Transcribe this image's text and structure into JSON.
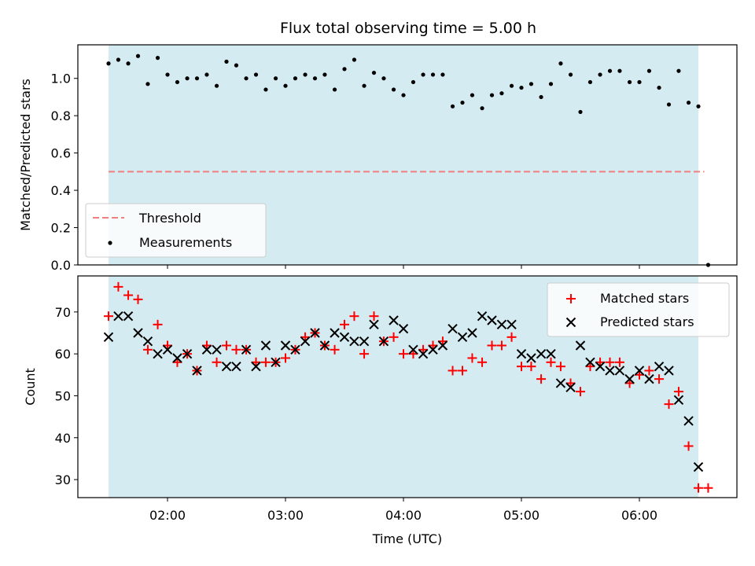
{
  "chart_data": {
    "title": "Flux total observing time = 5.00 h",
    "xlabel": "Time (UTC)",
    "x_unit": "hours UTC",
    "x_ticks": [
      {
        "value": 2,
        "label": "02:00"
      },
      {
        "value": 3,
        "label": "03:00"
      },
      {
        "value": 4,
        "label": "04:00"
      },
      {
        "value": 5,
        "label": "05:00"
      },
      {
        "value": 6,
        "label": "06:00"
      }
    ],
    "observing_window": [
      1.5,
      6.5
    ],
    "colors": {
      "window_fill": "#d4ebf1",
      "threshold": "#f08080",
      "measurements": "#000000",
      "matched": "#ff0000",
      "predicted": "#000000"
    },
    "panels": [
      {
        "type": "scatter",
        "ylabel": "Matched/Predicted stars",
        "ylim": [
          0,
          1.18
        ],
        "y_tick_labels": [
          "0.0",
          "0.2",
          "0.4",
          "0.6",
          "0.8",
          "1.0"
        ],
        "legend_position": "lower-left",
        "threshold": {
          "name": "Threshold",
          "y": 0.5,
          "x_range": [
            1.5,
            6.55
          ]
        },
        "measurements": {
          "name": "Measurements",
          "x": [
            1.5,
            1.583,
            1.667,
            1.75,
            1.833,
            1.917,
            2.0,
            2.083,
            2.167,
            2.25,
            2.333,
            2.417,
            2.5,
            2.583,
            2.667,
            2.75,
            2.833,
            2.917,
            3.0,
            3.083,
            3.167,
            3.25,
            3.333,
            3.417,
            3.5,
            3.583,
            3.667,
            3.75,
            3.833,
            3.917,
            4.0,
            4.083,
            4.167,
            4.25,
            4.333,
            4.417,
            4.5,
            4.583,
            4.667,
            4.75,
            4.833,
            4.917,
            5.0,
            5.083,
            5.167,
            5.25,
            5.333,
            5.417,
            5.5,
            5.583,
            5.667,
            5.75,
            5.833,
            5.917,
            6.0,
            6.083,
            6.167,
            6.25,
            6.333,
            6.417,
            6.5,
            6.583
          ],
          "y": [
            1.08,
            1.1,
            1.08,
            1.12,
            0.97,
            1.11,
            1.02,
            0.98,
            1.0,
            1.0,
            1.02,
            0.96,
            1.09,
            1.07,
            1.0,
            1.02,
            0.94,
            1.0,
            0.96,
            1.0,
            1.02,
            1.0,
            1.02,
            0.94,
            1.05,
            1.1,
            0.96,
            1.03,
            1.0,
            0.94,
            0.91,
            0.98,
            1.02,
            1.02,
            1.02,
            0.85,
            0.87,
            0.91,
            0.84,
            0.91,
            0.92,
            0.96,
            0.95,
            0.97,
            0.9,
            0.97,
            1.08,
            1.02,
            0.82,
            0.98,
            1.02,
            1.04,
            1.04,
            0.98,
            0.98,
            1.04,
            0.95,
            0.86,
            1.04,
            0.87,
            0.85,
            0.0
          ]
        }
      },
      {
        "type": "scatter",
        "ylabel": "Count",
        "ylim": [
          25.7,
          78.6
        ],
        "y_tick_labels": [
          "30",
          "40",
          "50",
          "60",
          "70"
        ],
        "legend_position": "upper-right",
        "matched": {
          "name": "Matched stars",
          "x": [
            1.5,
            1.583,
            1.667,
            1.75,
            1.833,
            1.917,
            2.0,
            2.083,
            2.167,
            2.25,
            2.333,
            2.417,
            2.5,
            2.583,
            2.667,
            2.75,
            2.833,
            2.917,
            3.0,
            3.083,
            3.167,
            3.25,
            3.333,
            3.417,
            3.5,
            3.583,
            3.667,
            3.75,
            3.833,
            3.917,
            4.0,
            4.083,
            4.167,
            4.25,
            4.333,
            4.417,
            4.5,
            4.583,
            4.667,
            4.75,
            4.833,
            4.917,
            5.0,
            5.083,
            5.167,
            5.25,
            5.333,
            5.417,
            5.5,
            5.583,
            5.667,
            5.75,
            5.833,
            5.917,
            6.0,
            6.083,
            6.167,
            6.25,
            6.333,
            6.417,
            6.5,
            6.583
          ],
          "y": [
            69,
            76,
            74,
            73,
            61,
            67,
            62,
            58,
            60,
            56,
            62,
            58,
            62,
            61,
            61,
            58,
            58,
            58,
            59,
            61,
            64,
            65,
            62,
            61,
            67,
            69,
            60,
            69,
            63,
            64,
            60,
            60,
            61,
            62,
            63,
            56,
            56,
            59,
            58,
            62,
            62,
            64,
            57,
            57,
            54,
            58,
            57,
            53,
            51,
            57,
            58,
            58,
            58,
            53,
            55,
            56,
            54,
            48,
            51,
            38,
            28,
            28
          ]
        },
        "predicted": {
          "name": "Predicted stars",
          "x": [
            1.5,
            1.583,
            1.667,
            1.75,
            1.833,
            1.917,
            2.0,
            2.083,
            2.167,
            2.25,
            2.333,
            2.417,
            2.5,
            2.583,
            2.667,
            2.75,
            2.833,
            2.917,
            3.0,
            3.083,
            3.167,
            3.25,
            3.333,
            3.417,
            3.5,
            3.583,
            3.667,
            3.75,
            3.833,
            3.917,
            4.0,
            4.083,
            4.167,
            4.25,
            4.333,
            4.417,
            4.5,
            4.583,
            4.667,
            4.75,
            4.833,
            4.917,
            5.0,
            5.083,
            5.167,
            5.25,
            5.333,
            5.417,
            5.5,
            5.583,
            5.667,
            5.75,
            5.833,
            5.917,
            6.0,
            6.083,
            6.167,
            6.25,
            6.333,
            6.417,
            6.5
          ],
          "y": [
            64,
            69,
            69,
            65,
            63,
            60,
            61,
            59,
            60,
            56,
            61,
            61,
            57,
            57,
            61,
            57,
            62,
            58,
            62,
            61,
            63,
            65,
            62,
            65,
            64,
            63,
            63,
            67,
            63,
            68,
            66,
            61,
            60,
            61,
            62,
            66,
            64,
            65,
            69,
            68,
            67,
            67,
            60,
            59,
            60,
            60,
            53,
            52,
            62,
            58,
            57,
            56,
            56,
            54,
            56,
            54,
            57,
            56,
            49,
            44,
            33
          ]
        }
      }
    ]
  }
}
